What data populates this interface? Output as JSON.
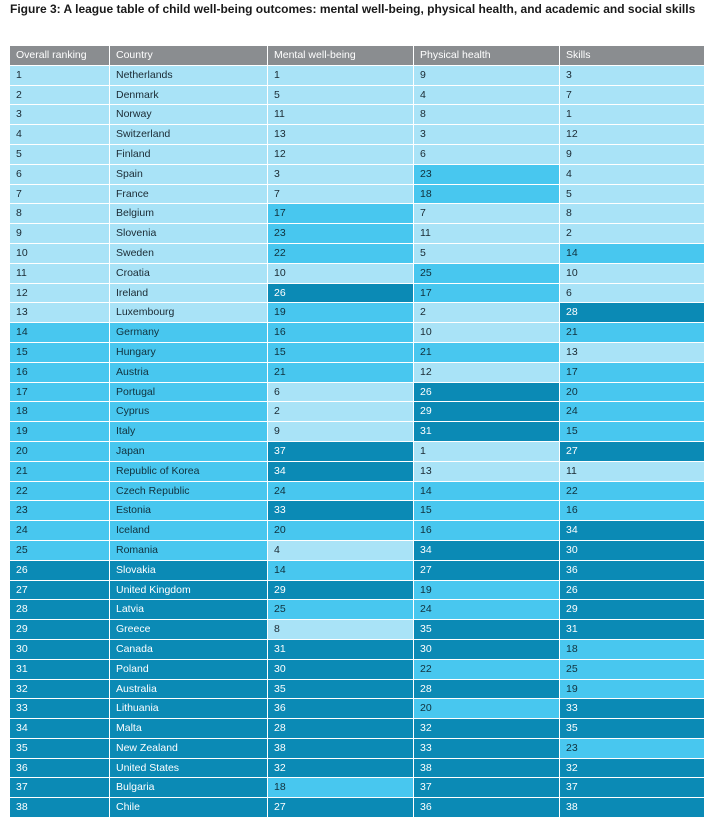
{
  "title": "Figure 3: A league table of child well-being outcomes: mental well-being, physical health, and academic and social skills",
  "colors": {
    "header": "#8a8d90",
    "top_third": "#a9e3f7",
    "middle_third": "#48c7ef",
    "bottom_third": "#0b8ab5"
  },
  "chart_data": {
    "type": "table",
    "columns": [
      "Overall ranking",
      "Country",
      "Mental well-being",
      "Physical health",
      "Skills"
    ],
    "rows": [
      [
        1,
        "Netherlands",
        1,
        9,
        3
      ],
      [
        2,
        "Denmark",
        5,
        4,
        7
      ],
      [
        3,
        "Norway",
        11,
        8,
        1
      ],
      [
        4,
        "Switzerland",
        13,
        3,
        12
      ],
      [
        5,
        "Finland",
        12,
        6,
        9
      ],
      [
        6,
        "Spain",
        3,
        23,
        4
      ],
      [
        7,
        "France",
        7,
        18,
        5
      ],
      [
        8,
        "Belgium",
        17,
        7,
        8
      ],
      [
        9,
        "Slovenia",
        23,
        11,
        2
      ],
      [
        10,
        "Sweden",
        22,
        5,
        14
      ],
      [
        11,
        "Croatia",
        10,
        25,
        10
      ],
      [
        12,
        "Ireland",
        26,
        17,
        6
      ],
      [
        13,
        "Luxembourg",
        19,
        2,
        28
      ],
      [
        14,
        "Germany",
        16,
        10,
        21
      ],
      [
        15,
        "Hungary",
        15,
        21,
        13
      ],
      [
        16,
        "Austria",
        21,
        12,
        17
      ],
      [
        17,
        "Portugal",
        6,
        26,
        20
      ],
      [
        18,
        "Cyprus",
        2,
        29,
        24
      ],
      [
        19,
        "Italy",
        9,
        31,
        15
      ],
      [
        20,
        "Japan",
        37,
        1,
        27
      ],
      [
        21,
        "Republic of Korea",
        34,
        13,
        11
      ],
      [
        22,
        "Czech Republic",
        24,
        14,
        22
      ],
      [
        23,
        "Estonia",
        33,
        15,
        16
      ],
      [
        24,
        "Iceland",
        20,
        16,
        34
      ],
      [
        25,
        "Romania",
        4,
        34,
        30
      ],
      [
        26,
        "Slovakia",
        14,
        27,
        36
      ],
      [
        27,
        "United Kingdom",
        29,
        19,
        26
      ],
      [
        28,
        "Latvia",
        25,
        24,
        29
      ],
      [
        29,
        "Greece",
        8,
        35,
        31
      ],
      [
        30,
        "Canada",
        31,
        30,
        18
      ],
      [
        31,
        "Poland",
        30,
        22,
        25
      ],
      [
        32,
        "Australia",
        35,
        28,
        19
      ],
      [
        33,
        "Lithuania",
        36,
        20,
        33
      ],
      [
        34,
        "Malta",
        28,
        32,
        35
      ],
      [
        35,
        "New Zealand",
        38,
        33,
        23
      ],
      [
        36,
        "United States",
        32,
        38,
        32
      ],
      [
        37,
        "Bulgaria",
        18,
        37,
        37
      ],
      [
        38,
        "Chile",
        27,
        36,
        38
      ]
    ]
  }
}
